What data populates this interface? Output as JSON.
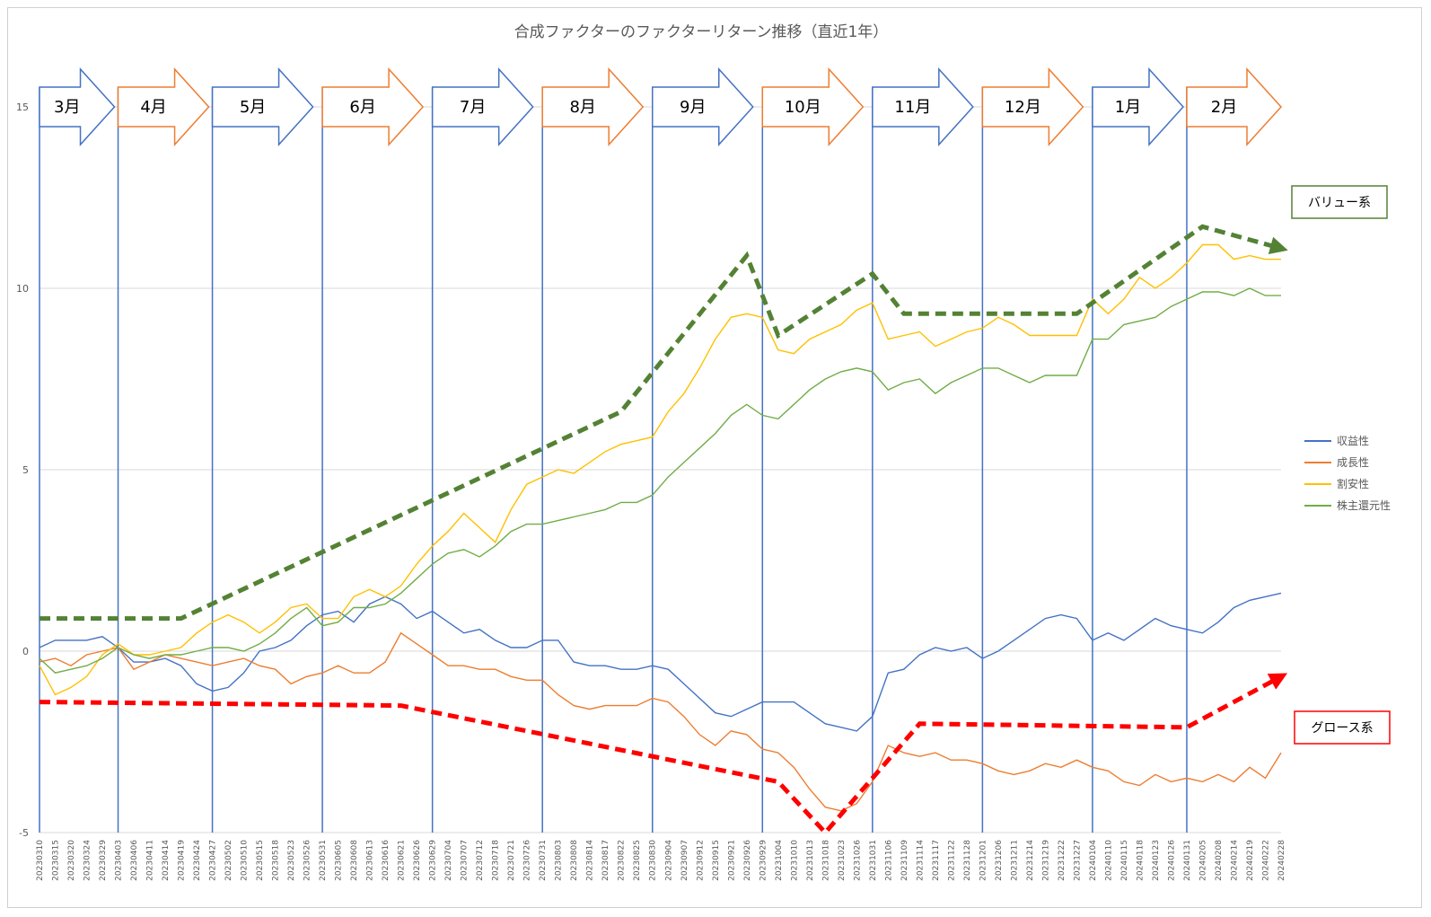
{
  "chart_data": {
    "type": "line",
    "title": "合成ファクターのファクターリターン推移（直近1年）",
    "ylim": [
      -5,
      15
    ],
    "yticks": [
      -5,
      0,
      5,
      10,
      15
    ],
    "grid": true,
    "legend_position": "right",
    "x_tick_labels": [
      "20230310",
      "20230315",
      "20230320",
      "20230324",
      "20230329",
      "20230403",
      "20230406",
      "20230411",
      "20230414",
      "20230419",
      "20230424",
      "20230427",
      "20230502",
      "20230510",
      "20230515",
      "20230518",
      "20230523",
      "20230526",
      "20230531",
      "20230605",
      "20230608",
      "20230613",
      "20230616",
      "20230621",
      "20230626",
      "20230629",
      "20230704",
      "20230707",
      "20230712",
      "20230718",
      "20230721",
      "20230726",
      "20230731",
      "20230803",
      "20230808",
      "20230814",
      "20230817",
      "20230822",
      "20230825",
      "20230830",
      "20230904",
      "20230907",
      "20230912",
      "20230915",
      "20230921",
      "20230926",
      "20230929",
      "20231004",
      "20231010",
      "20231013",
      "20231018",
      "20231023",
      "20231026",
      "20231031",
      "20231106",
      "20231109",
      "20231114",
      "20231117",
      "20231122",
      "20231128",
      "20231201",
      "20231206",
      "20231211",
      "20231214",
      "20231219",
      "20231222",
      "20231227",
      "20240104",
      "20240110",
      "20240115",
      "20240118",
      "20240123",
      "20240126",
      "20240131",
      "20240205",
      "20240208",
      "20240214",
      "20240219",
      "20240222",
      "20240228"
    ],
    "series": [
      {
        "name": "収益性",
        "color": "#4472c4",
        "values": [
          0.1,
          0.3,
          0.3,
          0.3,
          0.4,
          0.1,
          -0.3,
          -0.3,
          -0.2,
          -0.4,
          -0.9,
          -1.1,
          -1.0,
          -0.6,
          0.0,
          0.1,
          0.3,
          0.7,
          1.0,
          1.1,
          0.8,
          1.3,
          1.5,
          1.3,
          0.9,
          1.1,
          0.8,
          0.5,
          0.6,
          0.3,
          0.1,
          0.1,
          0.3,
          0.3,
          -0.3,
          -0.4,
          -0.4,
          -0.5,
          -0.5,
          -0.4,
          -0.5,
          -0.9,
          -1.3,
          -1.7,
          -1.8,
          -1.6,
          -1.4,
          -1.4,
          -1.4,
          -1.7,
          -2.0,
          -2.1,
          -2.2,
          -1.8,
          -0.6,
          -0.5,
          -0.1,
          0.1,
          0.0,
          0.1,
          -0.2,
          0.0,
          0.3,
          0.6,
          0.9,
          1.0,
          0.9,
          0.3,
          0.5,
          0.3,
          0.6,
          0.9,
          0.7,
          0.6,
          0.5,
          0.8,
          1.2,
          1.4,
          1.5,
          1.6
        ]
      },
      {
        "name": "成長性",
        "color": "#ed7d31",
        "values": [
          -0.3,
          -0.2,
          -0.4,
          -0.1,
          0.0,
          0.1,
          -0.5,
          -0.3,
          -0.1,
          -0.2,
          -0.3,
          -0.4,
          -0.3,
          -0.2,
          -0.4,
          -0.5,
          -0.9,
          -0.7,
          -0.6,
          -0.4,
          -0.6,
          -0.6,
          -0.3,
          0.5,
          0.2,
          -0.1,
          -0.4,
          -0.4,
          -0.5,
          -0.5,
          -0.7,
          -0.8,
          -0.8,
          -1.2,
          -1.5,
          -1.6,
          -1.5,
          -1.5,
          -1.5,
          -1.3,
          -1.4,
          -1.8,
          -2.3,
          -2.6,
          -2.2,
          -2.3,
          -2.7,
          -2.8,
          -3.2,
          -3.8,
          -4.3,
          -4.4,
          -4.2,
          -3.6,
          -2.6,
          -2.8,
          -2.9,
          -2.8,
          -3.0,
          -3.0,
          -3.1,
          -3.3,
          -3.4,
          -3.3,
          -3.1,
          -3.2,
          -3.0,
          -3.2,
          -3.3,
          -3.6,
          -3.7,
          -3.4,
          -3.6,
          -3.5,
          -3.6,
          -3.4,
          -3.6,
          -3.2,
          -3.5,
          -2.8
        ]
      },
      {
        "name": "割安性",
        "color": "#ffc000",
        "values": [
          -0.4,
          -1.2,
          -1.0,
          -0.7,
          -0.1,
          0.2,
          -0.1,
          -0.1,
          0.0,
          0.1,
          0.5,
          0.8,
          1.0,
          0.8,
          0.5,
          0.8,
          1.2,
          1.3,
          0.9,
          0.9,
          1.5,
          1.7,
          1.5,
          1.8,
          2.4,
          2.9,
          3.3,
          3.8,
          3.4,
          3.0,
          3.9,
          4.6,
          4.8,
          5.0,
          4.9,
          5.2,
          5.5,
          5.7,
          5.8,
          5.9,
          6.6,
          7.1,
          7.8,
          8.6,
          9.2,
          9.3,
          9.2,
          8.3,
          8.2,
          8.6,
          8.8,
          9.0,
          9.4,
          9.6,
          8.6,
          8.7,
          8.8,
          8.4,
          8.6,
          8.8,
          8.9,
          9.2,
          9.0,
          8.7,
          8.7,
          8.7,
          8.7,
          9.7,
          9.3,
          9.7,
          10.3,
          10.0,
          10.3,
          10.7,
          11.2,
          11.2,
          10.8,
          10.9,
          10.8,
          10.8
        ]
      },
      {
        "name": "株主還元性",
        "color": "#70ad47",
        "values": [
          -0.2,
          -0.6,
          -0.5,
          -0.4,
          -0.2,
          0.1,
          -0.1,
          -0.2,
          -0.1,
          -0.1,
          0.0,
          0.1,
          0.1,
          0.0,
          0.2,
          0.5,
          0.9,
          1.2,
          0.7,
          0.8,
          1.2,
          1.2,
          1.3,
          1.6,
          2.0,
          2.4,
          2.7,
          2.8,
          2.6,
          2.9,
          3.3,
          3.5,
          3.5,
          3.6,
          3.7,
          3.8,
          3.9,
          4.1,
          4.1,
          4.3,
          4.8,
          5.2,
          5.6,
          6.0,
          6.5,
          6.8,
          6.5,
          6.4,
          6.8,
          7.2,
          7.5,
          7.7,
          7.8,
          7.7,
          7.2,
          7.4,
          7.5,
          7.1,
          7.4,
          7.6,
          7.8,
          7.8,
          7.6,
          7.4,
          7.6,
          7.6,
          7.6,
          8.6,
          8.6,
          9.0,
          9.1,
          9.2,
          9.5,
          9.7,
          9.9,
          9.9,
          9.8,
          10.0,
          9.8,
          9.8
        ]
      }
    ]
  },
  "months": [
    "3月",
    "4月",
    "5月",
    "6月",
    "7月",
    "8月",
    "9月",
    "10月",
    "11月",
    "12月",
    "1月",
    "2月"
  ],
  "month_start_index": [
    0,
    5,
    11,
    18,
    25,
    32,
    39,
    46,
    53,
    60,
    67,
    73
  ],
  "month_arrow_colors": [
    "#4472c4",
    "#ed7d31"
  ],
  "annotations": {
    "value_label": "バリュー系",
    "growth_label": "グロース系",
    "value_color": "#548235",
    "growth_color": "#ff0000",
    "value_trend": [
      [
        0,
        0.9
      ],
      [
        9,
        0.9
      ],
      [
        37,
        6.6
      ],
      [
        45,
        10.9
      ],
      [
        47,
        8.7
      ],
      [
        53,
        10.4
      ],
      [
        55,
        9.3
      ],
      [
        66,
        9.3
      ],
      [
        74,
        11.7
      ],
      [
        79,
        11.1
      ]
    ],
    "growth_trend": [
      [
        0,
        -1.4
      ],
      [
        23,
        -1.5
      ],
      [
        47,
        -3.6
      ],
      [
        50,
        -5.0
      ],
      [
        56,
        -2.0
      ],
      [
        73,
        -2.1
      ],
      [
        79,
        -0.7
      ]
    ]
  }
}
